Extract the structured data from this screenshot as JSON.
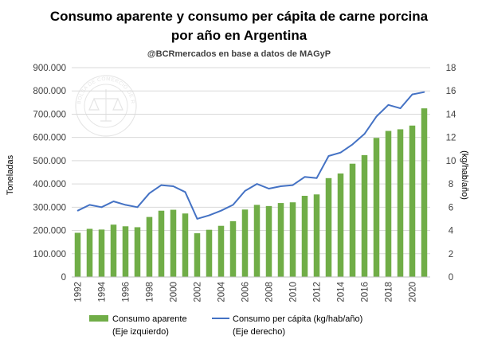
{
  "chart_data": {
    "type": "bar",
    "title": "Consumo aparente y consumo per cápita de carne porcina",
    "title_line2": "por año en Argentina",
    "subtitle": "@BCRmercados en base a datos de MAGyP",
    "watermark": "BOLSA DE COMERCIO DE ROSARIO",
    "ylabel": "Toneladas",
    "y2label": "(kg/hab/año)",
    "ylim": [
      0,
      900000
    ],
    "y2lim": [
      0,
      18
    ],
    "yticks": [
      "0",
      "100.000",
      "200.000",
      "300.000",
      "400.000",
      "500.000",
      "600.000",
      "700.000",
      "800.000",
      "900.000"
    ],
    "y2ticks": [
      "0",
      "2",
      "4",
      "6",
      "8",
      "10",
      "12",
      "14",
      "16",
      "18"
    ],
    "xticks": [
      "1992",
      "1994",
      "1996",
      "1998",
      "2000",
      "2002",
      "2004",
      "2006",
      "2008",
      "2010",
      "2012",
      "2014",
      "2016",
      "2018",
      "2020"
    ],
    "grid": true,
    "legend_position": "bottom",
    "colors": {
      "bars": "#70ad47",
      "line": "#4472c4",
      "grid": "#d9d9d9",
      "text": "#404040"
    },
    "categories": [
      "1992",
      "1993",
      "1994",
      "1995",
      "1996",
      "1997",
      "1998",
      "1999",
      "2000",
      "2001",
      "2002",
      "2003",
      "2004",
      "2005",
      "2006",
      "2007",
      "2008",
      "2009",
      "2010",
      "2011",
      "2012",
      "2013",
      "2014",
      "2015",
      "2016",
      "2017",
      "2018",
      "2019",
      "2020",
      "2021"
    ],
    "series": [
      {
        "name": "Consumo aparente",
        "name_line2": "(Eje izquierdo)",
        "axis": "left",
        "type": "bar",
        "values": [
          190000,
          207000,
          204000,
          225000,
          218000,
          214000,
          258000,
          285000,
          289000,
          273000,
          188000,
          203000,
          220000,
          240000,
          290000,
          310000,
          305000,
          318000,
          321000,
          349000,
          355000,
          425000,
          445000,
          487000,
          524000,
          598000,
          628000,
          635000,
          651000,
          725000
        ]
      },
      {
        "name": "Consumo per cápita (kg/hab/año)",
        "name_line2": "(Eje derecho)",
        "axis": "right",
        "type": "line",
        "values": [
          5.7,
          6.2,
          6.0,
          6.5,
          6.2,
          6.0,
          7.2,
          7.9,
          7.8,
          7.3,
          5.0,
          5.3,
          5.7,
          6.2,
          7.4,
          8.0,
          7.6,
          7.8,
          7.9,
          8.6,
          8.5,
          10.4,
          10.7,
          11.4,
          12.3,
          13.8,
          14.8,
          14.5,
          15.7,
          15.9
        ]
      }
    ]
  }
}
